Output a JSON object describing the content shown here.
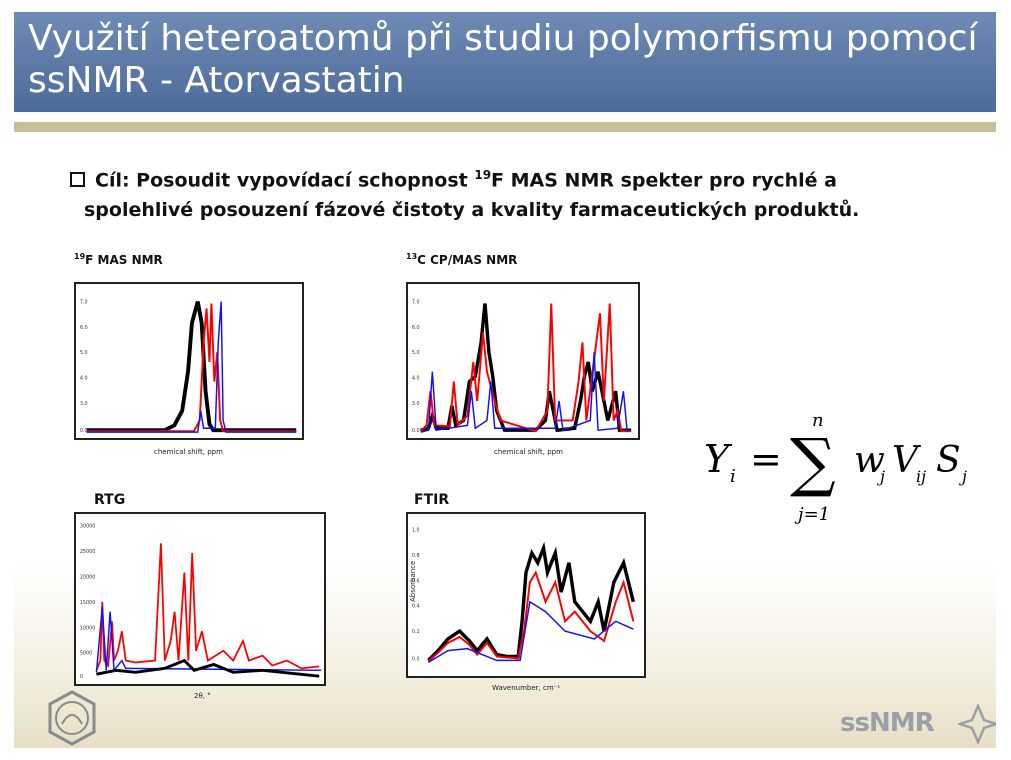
{
  "title": {
    "line1": "Využití heteroatomů při studiu polymorfismu pomocí",
    "line2": "ssNMR - Atorvastatin"
  },
  "bullet": {
    "prefix": "Cíl: Posoudit vypovídací schopnost ",
    "sup": "19",
    "rest": "F MAS NMR spekter pro rychlé  a",
    "line2": "spolehlivé posouzení fázové čistoty  a kvality farmaceutických produktů."
  },
  "panels": {
    "f19": {
      "label_sup": "19",
      "label_text": "F MAS NMR",
      "xlabel": "chemical shift, ppm"
    },
    "c13": {
      "label_sup": "13",
      "label_text": "C CP/MAS NMR",
      "xlabel": "chemical shift, ppm"
    },
    "rtg": {
      "label": "RTG",
      "xlabel": "2θ, °"
    },
    "ftir": {
      "label": "FTIR",
      "xlabel": "Wavenumber, cm⁻¹",
      "ylabel": "Absorbance"
    }
  },
  "formula": {
    "lhs": "Y",
    "lhs_sub": "i",
    "eq": "=",
    "upper": "n",
    "lower": "j=1",
    "sigma": "∑",
    "terms": [
      {
        "var": "w",
        "sub": "j"
      },
      {
        "var": "V",
        "sub": "ij"
      },
      {
        "var": "S",
        "sub": "j"
      }
    ]
  },
  "logos": {
    "right_text": "ssNMR"
  },
  "colors": {
    "title_bg": "#5a77a6",
    "rule": "#c9bd9c",
    "series_black": "#000000",
    "series_red": "#ff0000",
    "series_blue": "#1010ff"
  }
}
